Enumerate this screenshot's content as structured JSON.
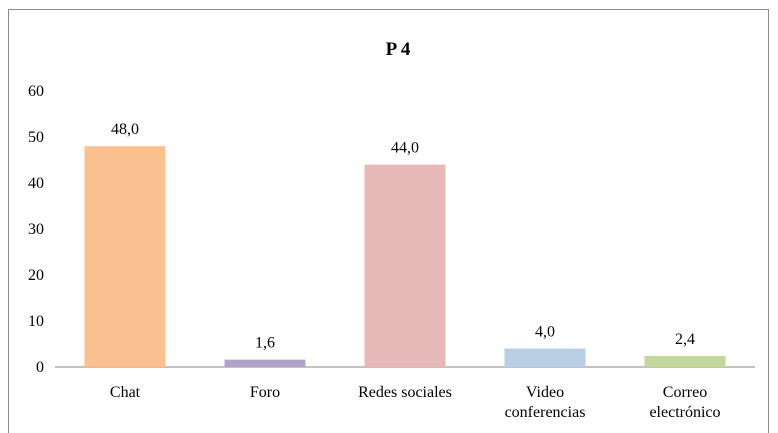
{
  "chart_data": {
    "type": "bar",
    "title": "P 4",
    "xlabel": "",
    "ylabel": "",
    "ylim": [
      0,
      60
    ],
    "yticks": [
      0,
      10,
      20,
      30,
      40,
      50,
      60
    ],
    "grid": false,
    "legend": "none",
    "categories": [
      [
        "Chat"
      ],
      [
        "Foro"
      ],
      [
        "Redes sociales"
      ],
      [
        "Video",
        "conferencias"
      ],
      [
        "Correo",
        "electrónico"
      ]
    ],
    "values": [
      48.0,
      1.6,
      44.0,
      4.0,
      2.4
    ],
    "value_labels": [
      "48,0",
      "1,6",
      "44,0",
      "4,0",
      "2,4"
    ],
    "colors": [
      "#fac090",
      "#b3a2c7",
      "#e6b9b8",
      "#b9cde5",
      "#c3d69b"
    ]
  }
}
